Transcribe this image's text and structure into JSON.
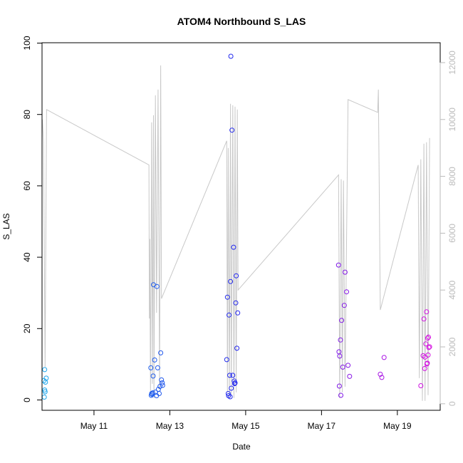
{
  "chart_data": {
    "type": "scatter",
    "title": "ATOM4 Northbound S_LAS",
    "xlabel": "Date",
    "ylabel": "S_LAS",
    "ylim": [
      0,
      100
    ],
    "y_ticks": [
      0,
      20,
      40,
      60,
      80,
      100
    ],
    "xlim": [
      9.63,
      20.13
    ],
    "x_unit": "day of May",
    "x_ticks": [
      {
        "value": 11,
        "label": "May 11"
      },
      {
        "value": 13,
        "label": "May 13"
      },
      {
        "value": 15,
        "label": "May 15"
      },
      {
        "value": 17,
        "label": "May 17"
      },
      {
        "value": 19,
        "label": "May 19"
      }
    ],
    "y2lim": [
      -230,
      12700
    ],
    "y2_ticks": [
      0,
      2000,
      4000,
      6000,
      8000,
      10000,
      12000
    ],
    "colors": {
      "start": "#1ea8ec",
      "mid": "#2222ee",
      "end": "#e010e0",
      "line": "#c8c8c8",
      "axis": "#000000",
      "right_axis": "#bbbbbb"
    },
    "series": [
      {
        "name": "S_LAS",
        "kind": "points",
        "points": [
          [
            9.7,
            8.5
          ],
          [
            9.68,
            5.4
          ],
          [
            9.72,
            5.0
          ],
          [
            9.74,
            6.1
          ],
          [
            9.7,
            2.8
          ],
          [
            9.71,
            2.3
          ],
          [
            9.69,
            0.8
          ],
          [
            12.5,
            9.0
          ],
          [
            12.52,
            1.8
          ],
          [
            12.51,
            1.3
          ],
          [
            12.53,
            1.6
          ],
          [
            12.55,
            2.0
          ],
          [
            12.56,
            6.7
          ],
          [
            12.57,
            32.3
          ],
          [
            12.6,
            11.2
          ],
          [
            12.62,
            2.2
          ],
          [
            12.65,
            1.2
          ],
          [
            12.66,
            31.8
          ],
          [
            12.68,
            9.0
          ],
          [
            12.7,
            3.0
          ],
          [
            12.72,
            1.8
          ],
          [
            12.74,
            3.8
          ],
          [
            12.76,
            13.2
          ],
          [
            12.78,
            5.6
          ],
          [
            12.8,
            4.8
          ],
          [
            12.81,
            4.1
          ],
          [
            14.5,
            11.3
          ],
          [
            14.52,
            28.8
          ],
          [
            14.54,
            1.8
          ],
          [
            14.55,
            1.2
          ],
          [
            14.56,
            23.8
          ],
          [
            14.58,
            6.9
          ],
          [
            14.59,
            0.9
          ],
          [
            14.6,
            33.2
          ],
          [
            14.61,
            96.3
          ],
          [
            14.62,
            3.3
          ],
          [
            14.64,
            75.6
          ],
          [
            14.66,
            6.9
          ],
          [
            14.68,
            42.8
          ],
          [
            14.7,
            5.3
          ],
          [
            14.71,
            4.6
          ],
          [
            14.72,
            4.8
          ],
          [
            14.74,
            27.2
          ],
          [
            14.75,
            34.8
          ],
          [
            14.77,
            14.5
          ],
          [
            14.79,
            24.4
          ],
          [
            17.45,
            37.8
          ],
          [
            17.46,
            13.5
          ],
          [
            17.47,
            3.9
          ],
          [
            17.48,
            12.3
          ],
          [
            17.5,
            16.8
          ],
          [
            17.51,
            1.3
          ],
          [
            17.53,
            22.3
          ],
          [
            17.56,
            9.2
          ],
          [
            17.6,
            26.5
          ],
          [
            17.62,
            35.8
          ],
          [
            17.66,
            30.3
          ],
          [
            17.7,
            9.7
          ],
          [
            17.74,
            6.6
          ],
          [
            18.55,
            7.2
          ],
          [
            18.59,
            6.3
          ],
          [
            18.65,
            11.9
          ],
          [
            19.62,
            4.0
          ],
          [
            19.68,
            12.4
          ],
          [
            19.7,
            22.7
          ],
          [
            19.72,
            8.8
          ],
          [
            19.73,
            12.0
          ],
          [
            19.75,
            15.7
          ],
          [
            19.77,
            24.7
          ],
          [
            19.78,
            10.1
          ],
          [
            19.79,
            10.3
          ],
          [
            19.8,
            17.3
          ],
          [
            19.81,
            12.6
          ],
          [
            19.82,
            17.6
          ],
          [
            19.83,
            14.7
          ],
          [
            19.85,
            14.9
          ]
        ]
      },
      {
        "name": "secondary series (right axis)",
        "kind": "line",
        "points": [
          [
            9.64,
            10000
          ],
          [
            9.67,
            9200
          ],
          [
            9.71,
            1300
          ],
          [
            9.75,
            10350
          ],
          [
            12.45,
            8400
          ],
          [
            12.46,
            3000
          ],
          [
            12.47,
            5800
          ],
          [
            12.49,
            300
          ],
          [
            12.52,
            9900
          ],
          [
            12.54,
            700
          ],
          [
            12.57,
            10150
          ],
          [
            12.58,
            200
          ],
          [
            12.62,
            10850
          ],
          [
            12.65,
            3200
          ],
          [
            12.69,
            11050
          ],
          [
            12.73,
            500
          ],
          [
            12.76,
            11900
          ],
          [
            12.78,
            3700
          ],
          [
            14.5,
            9250
          ],
          [
            14.52,
            400
          ],
          [
            14.54,
            9000
          ],
          [
            14.57,
            200
          ],
          [
            14.6,
            10550
          ],
          [
            14.62,
            300
          ],
          [
            14.66,
            10500
          ],
          [
            14.69,
            200
          ],
          [
            14.72,
            10450
          ],
          [
            14.75,
            400
          ],
          [
            14.78,
            10350
          ],
          [
            14.8,
            4000
          ],
          [
            17.45,
            8050
          ],
          [
            17.48,
            200
          ],
          [
            17.52,
            7900
          ],
          [
            17.55,
            400
          ],
          [
            17.58,
            7850
          ],
          [
            17.62,
            600
          ],
          [
            17.7,
            10700
          ],
          [
            18.48,
            10250
          ],
          [
            18.5,
            11050
          ],
          [
            18.55,
            3300
          ],
          [
            19.55,
            8400
          ],
          [
            19.58,
            900
          ],
          [
            19.62,
            8600
          ],
          [
            19.66,
            100
          ],
          [
            19.7,
            9150
          ],
          [
            19.73,
            100
          ],
          [
            19.77,
            9200
          ],
          [
            19.81,
            300
          ],
          [
            19.85,
            9350
          ]
        ]
      }
    ]
  }
}
